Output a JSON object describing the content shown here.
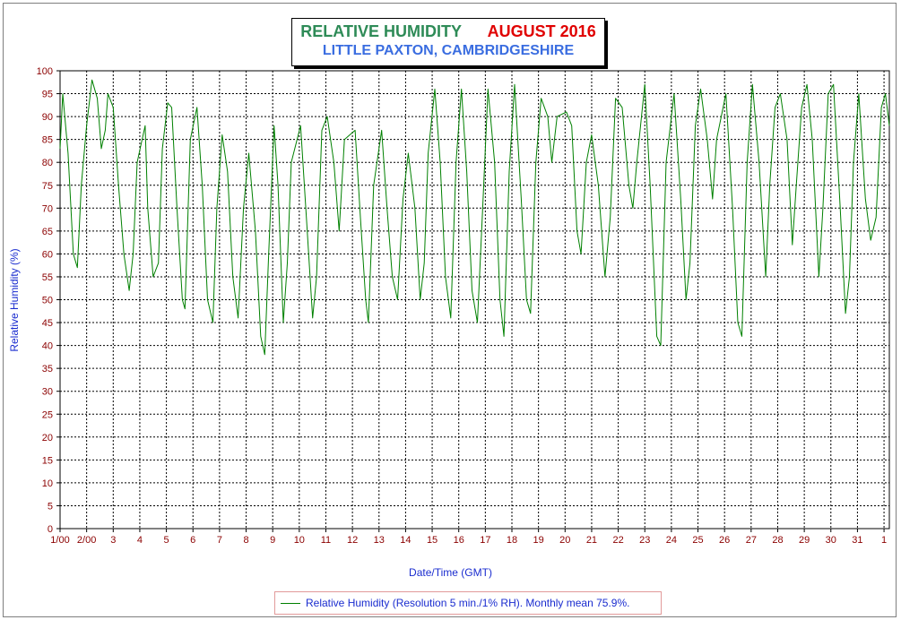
{
  "chart_data": {
    "type": "line",
    "title": "RELATIVE HUMIDITY",
    "title_month": "AUGUST 2016",
    "subtitle": "LITTLE PAXTON, CAMBRIDGESHIRE",
    "xlabel": "Date/Time (GMT)",
    "ylabel": "Relative Humidity (%)",
    "ylim": [
      0,
      100
    ],
    "yticks": [
      0,
      5,
      10,
      15,
      20,
      25,
      30,
      35,
      40,
      45,
      50,
      55,
      60,
      65,
      70,
      75,
      80,
      85,
      90,
      95,
      100
    ],
    "xlim": [
      1,
      32.2
    ],
    "xticks": [
      {
        "day": 1,
        "label": "1/00"
      },
      {
        "day": 2,
        "label": "2/00"
      },
      {
        "day": 3,
        "label": "3"
      },
      {
        "day": 4,
        "label": "4"
      },
      {
        "day": 5,
        "label": "5"
      },
      {
        "day": 6,
        "label": "6"
      },
      {
        "day": 7,
        "label": "7"
      },
      {
        "day": 8,
        "label": "8"
      },
      {
        "day": 9,
        "label": "9"
      },
      {
        "day": 10,
        "label": "10"
      },
      {
        "day": 11,
        "label": "11"
      },
      {
        "day": 12,
        "label": "12"
      },
      {
        "day": 13,
        "label": "13"
      },
      {
        "day": 14,
        "label": "14"
      },
      {
        "day": 15,
        "label": "15"
      },
      {
        "day": 16,
        "label": "16"
      },
      {
        "day": 17,
        "label": "17"
      },
      {
        "day": 18,
        "label": "18"
      },
      {
        "day": 19,
        "label": "19"
      },
      {
        "day": 20,
        "label": "20"
      },
      {
        "day": 21,
        "label": "21"
      },
      {
        "day": 22,
        "label": "22"
      },
      {
        "day": 23,
        "label": "23"
      },
      {
        "day": 24,
        "label": "24"
      },
      {
        "day": 25,
        "label": "25"
      },
      {
        "day": 26,
        "label": "26"
      },
      {
        "day": 27,
        "label": "27"
      },
      {
        "day": 28,
        "label": "28"
      },
      {
        "day": 29,
        "label": "29"
      },
      {
        "day": 30,
        "label": "30"
      },
      {
        "day": 31,
        "label": "31"
      },
      {
        "day": 32,
        "label": "1"
      }
    ],
    "grid": true,
    "legend_position": "bottom-center",
    "series": [
      {
        "name": "Relative Humidity (Resolution 5 min./1% RH). Monthly mean 75.9%.",
        "color": "#008000",
        "points": [
          [
            1.0,
            83
          ],
          [
            1.1,
            95
          ],
          [
            1.3,
            82
          ],
          [
            1.5,
            60
          ],
          [
            1.65,
            57
          ],
          [
            1.8,
            75
          ],
          [
            2.0,
            88
          ],
          [
            2.2,
            98
          ],
          [
            2.4,
            94
          ],
          [
            2.55,
            83
          ],
          [
            2.7,
            87
          ],
          [
            2.8,
            95
          ],
          [
            3.0,
            92
          ],
          [
            3.2,
            75
          ],
          [
            3.4,
            60
          ],
          [
            3.6,
            52
          ],
          [
            3.75,
            60
          ],
          [
            3.9,
            80
          ],
          [
            4.05,
            84
          ],
          [
            4.2,
            88
          ],
          [
            4.3,
            70
          ],
          [
            4.5,
            55
          ],
          [
            4.7,
            58
          ],
          [
            4.85,
            83
          ],
          [
            5.05,
            93
          ],
          [
            5.2,
            92
          ],
          [
            5.4,
            70
          ],
          [
            5.6,
            50
          ],
          [
            5.7,
            48
          ],
          [
            5.9,
            85
          ],
          [
            6.15,
            92
          ],
          [
            6.35,
            75
          ],
          [
            6.55,
            50
          ],
          [
            6.75,
            45
          ],
          [
            6.9,
            70
          ],
          [
            7.1,
            86
          ],
          [
            7.3,
            78
          ],
          [
            7.5,
            55
          ],
          [
            7.7,
            46
          ],
          [
            7.9,
            70
          ],
          [
            8.1,
            82
          ],
          [
            8.35,
            65
          ],
          [
            8.55,
            42
          ],
          [
            8.7,
            38
          ],
          [
            8.85,
            60
          ],
          [
            9.05,
            88
          ],
          [
            9.2,
            75
          ],
          [
            9.4,
            45
          ],
          [
            9.55,
            58
          ],
          [
            9.7,
            80
          ],
          [
            10.05,
            88
          ],
          [
            10.3,
            65
          ],
          [
            10.5,
            46
          ],
          [
            10.65,
            55
          ],
          [
            10.85,
            87
          ],
          [
            11.05,
            90
          ],
          [
            11.3,
            80
          ],
          [
            11.5,
            65
          ],
          [
            11.7,
            85
          ],
          [
            12.1,
            87
          ],
          [
            12.3,
            68
          ],
          [
            12.5,
            50
          ],
          [
            12.6,
            45
          ],
          [
            12.8,
            75
          ],
          [
            13.1,
            87
          ],
          [
            13.3,
            70
          ],
          [
            13.5,
            55
          ],
          [
            13.7,
            50
          ],
          [
            13.9,
            72
          ],
          [
            14.1,
            82
          ],
          [
            14.35,
            70
          ],
          [
            14.55,
            50
          ],
          [
            14.7,
            58
          ],
          [
            14.85,
            82
          ],
          [
            15.1,
            96
          ],
          [
            15.3,
            80
          ],
          [
            15.5,
            55
          ],
          [
            15.7,
            46
          ],
          [
            15.9,
            80
          ],
          [
            16.1,
            96
          ],
          [
            16.3,
            78
          ],
          [
            16.5,
            52
          ],
          [
            16.7,
            45
          ],
          [
            16.9,
            70
          ],
          [
            17.1,
            96
          ],
          [
            17.35,
            80
          ],
          [
            17.55,
            50
          ],
          [
            17.7,
            42
          ],
          [
            17.9,
            78
          ],
          [
            18.1,
            97
          ],
          [
            18.35,
            72
          ],
          [
            18.55,
            50
          ],
          [
            18.7,
            47
          ],
          [
            18.9,
            80
          ],
          [
            19.1,
            94
          ],
          [
            19.35,
            90
          ],
          [
            19.5,
            80
          ],
          [
            19.7,
            90
          ],
          [
            20.05,
            91
          ],
          [
            20.25,
            88
          ],
          [
            20.45,
            65
          ],
          [
            20.6,
            60
          ],
          [
            20.8,
            80
          ],
          [
            21.0,
            86
          ],
          [
            21.25,
            75
          ],
          [
            21.5,
            55
          ],
          [
            21.7,
            68
          ],
          [
            21.9,
            94
          ],
          [
            22.15,
            92
          ],
          [
            22.4,
            75
          ],
          [
            22.55,
            70
          ],
          [
            22.7,
            80
          ],
          [
            23.0,
            97
          ],
          [
            23.2,
            75
          ],
          [
            23.45,
            42
          ],
          [
            23.6,
            40
          ],
          [
            23.8,
            80
          ],
          [
            24.1,
            95
          ],
          [
            24.35,
            72
          ],
          [
            24.55,
            50
          ],
          [
            24.7,
            58
          ],
          [
            24.9,
            88
          ],
          [
            25.1,
            96
          ],
          [
            25.35,
            85
          ],
          [
            25.55,
            72
          ],
          [
            25.7,
            85
          ],
          [
            26.05,
            95
          ],
          [
            26.3,
            70
          ],
          [
            26.5,
            45
          ],
          [
            26.65,
            42
          ],
          [
            26.85,
            80
          ],
          [
            27.05,
            97
          ],
          [
            27.3,
            80
          ],
          [
            27.55,
            55
          ],
          [
            27.7,
            75
          ],
          [
            27.9,
            92
          ],
          [
            28.1,
            95
          ],
          [
            28.35,
            85
          ],
          [
            28.55,
            62
          ],
          [
            28.7,
            75
          ],
          [
            28.9,
            92
          ],
          [
            29.1,
            97
          ],
          [
            29.3,
            85
          ],
          [
            29.55,
            55
          ],
          [
            29.7,
            70
          ],
          [
            29.9,
            95
          ],
          [
            30.1,
            97
          ],
          [
            30.35,
            70
          ],
          [
            30.55,
            47
          ],
          [
            30.7,
            55
          ],
          [
            30.85,
            80
          ],
          [
            31.05,
            95
          ],
          [
            31.3,
            72
          ],
          [
            31.5,
            63
          ],
          [
            31.7,
            68
          ],
          [
            31.9,
            92
          ],
          [
            32.05,
            95
          ],
          [
            32.2,
            88
          ]
        ]
      }
    ]
  }
}
